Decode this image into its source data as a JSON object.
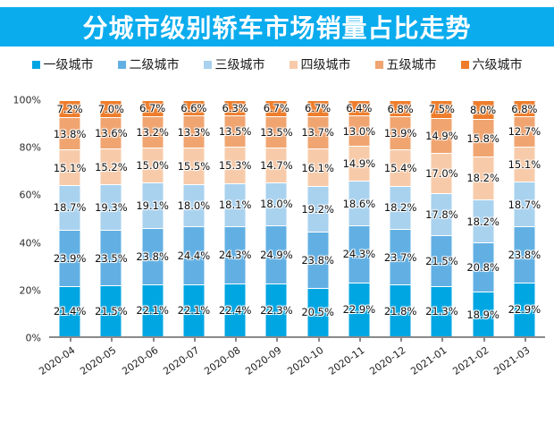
{
  "title": "分城市级别轿车市场销量占比走势",
  "banner_color": "#0bacee",
  "axis_color": "#8a8a8a",
  "chart_data": {
    "type": "bar",
    "stacked": true,
    "title": "分城市级别轿车市场销量占比走势",
    "xlabel": "",
    "ylabel": "",
    "ylim": [
      0,
      100
    ],
    "yticks": [
      "0%",
      "20%",
      "40%",
      "60%",
      "80%",
      "100%"
    ],
    "grid": false,
    "legend_position": "top",
    "value_suffix": "%",
    "categories": [
      "2020-04",
      "2020-05",
      "2020-06",
      "2020-07",
      "2020-08",
      "2020-09",
      "2020-10",
      "2020-11",
      "2020-12",
      "2021-01",
      "2021-02",
      "2021-03"
    ],
    "series": [
      {
        "name": "一级城市",
        "color": "#00a6e2",
        "values": [
          21.4,
          21.5,
          22.1,
          22.1,
          22.4,
          22.3,
          20.5,
          22.9,
          21.8,
          21.3,
          18.9,
          22.9
        ]
      },
      {
        "name": "二级城市",
        "color": "#62b0e3",
        "values": [
          23.9,
          23.5,
          23.8,
          24.4,
          24.3,
          24.9,
          23.8,
          24.3,
          23.7,
          21.5,
          20.8,
          23.8
        ]
      },
      {
        "name": "三级城市",
        "color": "#a9d2ef",
        "values": [
          18.7,
          19.3,
          19.1,
          18.0,
          18.1,
          18.0,
          19.2,
          18.6,
          18.2,
          17.8,
          18.2,
          18.7
        ]
      },
      {
        "name": "四级城市",
        "color": "#f7cbaa",
        "values": [
          15.1,
          15.2,
          15.0,
          15.5,
          15.3,
          14.7,
          16.1,
          14.9,
          15.4,
          17.0,
          18.2,
          15.1
        ]
      },
      {
        "name": "五级城市",
        "color": "#f0a571",
        "values": [
          13.8,
          13.6,
          13.2,
          13.3,
          13.5,
          13.5,
          13.7,
          13.0,
          13.9,
          14.9,
          15.8,
          12.7
        ]
      },
      {
        "name": "六级城市",
        "color": "#ee7d2b",
        "values": [
          7.2,
          7.0,
          6.7,
          6.6,
          6.3,
          6.7,
          6.7,
          6.4,
          6.8,
          7.5,
          8.0,
          6.8
        ]
      }
    ]
  }
}
